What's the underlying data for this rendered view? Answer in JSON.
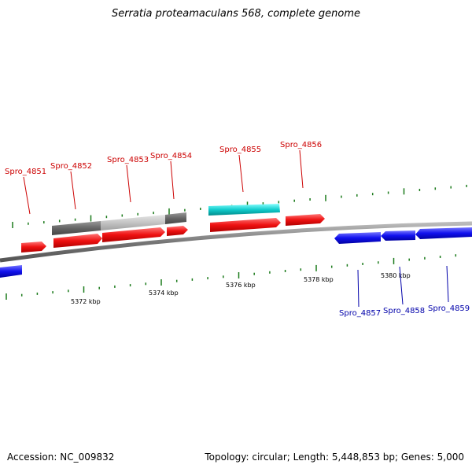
{
  "title": "Serratia proteamaculans 568, complete genome",
  "footer": {
    "accession": "Accession: NC_009832",
    "summary": "Topology: circular; Length: 5,448,853 bp; Genes: 5,000"
  },
  "colors": {
    "forward_gene": "#ee1111",
    "reverse_gene": "#1111ee",
    "forward_label": "#cc0000",
    "reverse_label": "#0000aa",
    "tick": "#1a7a1a",
    "backbone": "#808080",
    "grey_feature": "#666666",
    "cyan_feature": "#11cccc"
  },
  "forward_labels": [
    "Spro_4851",
    "Spro_4852",
    "Spro_4853",
    "Spro_4854",
    "Spro_4855",
    "Spro_4856"
  ],
  "reverse_labels": [
    "Spro_4857",
    "Spro_4858",
    "Spro_4859"
  ],
  "ruler": [
    "5372 kbp",
    "5374 kbp",
    "5376 kbp",
    "5378 kbp",
    "5380 kbp"
  ]
}
